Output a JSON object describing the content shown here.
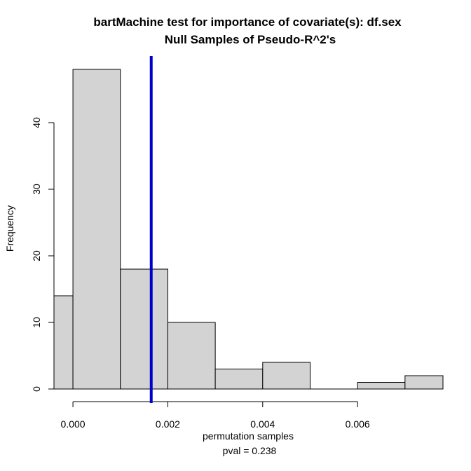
{
  "chart_data": {
    "type": "bar",
    "title": "bartMachine test for importance of covariate(s): df.sex",
    "subtitle": "Null Samples of Pseudo-R^2's",
    "xlabel": "permutation samples",
    "ylabel": "Frequency",
    "note": "pval =  0.238",
    "bins": [
      {
        "x0": -0.0004,
        "x1": 0.0,
        "count": 14
      },
      {
        "x0": 0.0,
        "x1": 0.001,
        "count": 48
      },
      {
        "x0": 0.001,
        "x1": 0.002,
        "count": 18
      },
      {
        "x0": 0.002,
        "x1": 0.003,
        "count": 10
      },
      {
        "x0": 0.003,
        "x1": 0.004,
        "count": 3
      },
      {
        "x0": 0.004,
        "x1": 0.005,
        "count": 4
      },
      {
        "x0": 0.005,
        "x1": 0.006,
        "count": 0
      },
      {
        "x0": 0.006,
        "x1": 0.007,
        "count": 1
      },
      {
        "x0": 0.007,
        "x1": 0.0078,
        "count": 2
      }
    ],
    "observed_value": 0.00165,
    "observed_line_color": "#0000CD",
    "bar_fill": "#D3D3D3",
    "xlim": [
      -0.0004,
      0.0078
    ],
    "ylim": [
      0,
      50
    ],
    "x_ticks": [
      0.0,
      0.002,
      0.004,
      0.006
    ],
    "x_tick_labels": [
      "0.000",
      "0.002",
      "0.004",
      "0.006"
    ],
    "y_ticks": [
      0,
      10,
      20,
      30,
      40
    ],
    "y_tick_labels": [
      "0",
      "10",
      "20",
      "30",
      "40"
    ],
    "grid": false
  }
}
